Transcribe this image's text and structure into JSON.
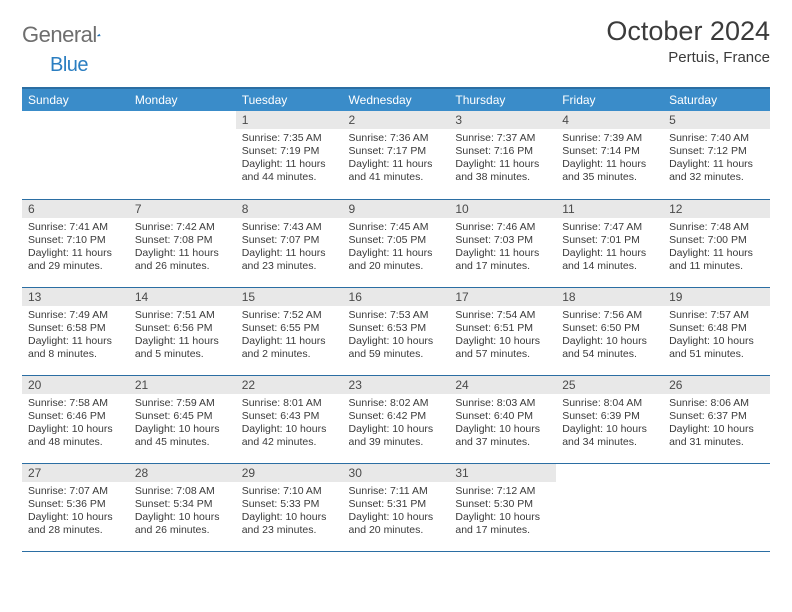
{
  "logo": {
    "word1": "General",
    "word2": "Blue"
  },
  "header": {
    "title": "October 2024",
    "location": "Pertuis, France"
  },
  "colors": {
    "brand_blue": "#2b7ec1",
    "header_bg": "#3a8cc9",
    "header_border": "#2b6ea3",
    "daynum_bg": "#e8e8e8",
    "text": "#3a3a3a",
    "logo_gray": "#6e6e6e"
  },
  "dayNames": [
    "Sunday",
    "Monday",
    "Tuesday",
    "Wednesday",
    "Thursday",
    "Friday",
    "Saturday"
  ],
  "weeks": [
    [
      null,
      null,
      {
        "n": "1",
        "sr": "7:35 AM",
        "ss": "7:19 PM",
        "dl": "11 hours and 44 minutes."
      },
      {
        "n": "2",
        "sr": "7:36 AM",
        "ss": "7:17 PM",
        "dl": "11 hours and 41 minutes."
      },
      {
        "n": "3",
        "sr": "7:37 AM",
        "ss": "7:16 PM",
        "dl": "11 hours and 38 minutes."
      },
      {
        "n": "4",
        "sr": "7:39 AM",
        "ss": "7:14 PM",
        "dl": "11 hours and 35 minutes."
      },
      {
        "n": "5",
        "sr": "7:40 AM",
        "ss": "7:12 PM",
        "dl": "11 hours and 32 minutes."
      }
    ],
    [
      {
        "n": "6",
        "sr": "7:41 AM",
        "ss": "7:10 PM",
        "dl": "11 hours and 29 minutes."
      },
      {
        "n": "7",
        "sr": "7:42 AM",
        "ss": "7:08 PM",
        "dl": "11 hours and 26 minutes."
      },
      {
        "n": "8",
        "sr": "7:43 AM",
        "ss": "7:07 PM",
        "dl": "11 hours and 23 minutes."
      },
      {
        "n": "9",
        "sr": "7:45 AM",
        "ss": "7:05 PM",
        "dl": "11 hours and 20 minutes."
      },
      {
        "n": "10",
        "sr": "7:46 AM",
        "ss": "7:03 PM",
        "dl": "11 hours and 17 minutes."
      },
      {
        "n": "11",
        "sr": "7:47 AM",
        "ss": "7:01 PM",
        "dl": "11 hours and 14 minutes."
      },
      {
        "n": "12",
        "sr": "7:48 AM",
        "ss": "7:00 PM",
        "dl": "11 hours and 11 minutes."
      }
    ],
    [
      {
        "n": "13",
        "sr": "7:49 AM",
        "ss": "6:58 PM",
        "dl": "11 hours and 8 minutes."
      },
      {
        "n": "14",
        "sr": "7:51 AM",
        "ss": "6:56 PM",
        "dl": "11 hours and 5 minutes."
      },
      {
        "n": "15",
        "sr": "7:52 AM",
        "ss": "6:55 PM",
        "dl": "11 hours and 2 minutes."
      },
      {
        "n": "16",
        "sr": "7:53 AM",
        "ss": "6:53 PM",
        "dl": "10 hours and 59 minutes."
      },
      {
        "n": "17",
        "sr": "7:54 AM",
        "ss": "6:51 PM",
        "dl": "10 hours and 57 minutes."
      },
      {
        "n": "18",
        "sr": "7:56 AM",
        "ss": "6:50 PM",
        "dl": "10 hours and 54 minutes."
      },
      {
        "n": "19",
        "sr": "7:57 AM",
        "ss": "6:48 PM",
        "dl": "10 hours and 51 minutes."
      }
    ],
    [
      {
        "n": "20",
        "sr": "7:58 AM",
        "ss": "6:46 PM",
        "dl": "10 hours and 48 minutes."
      },
      {
        "n": "21",
        "sr": "7:59 AM",
        "ss": "6:45 PM",
        "dl": "10 hours and 45 minutes."
      },
      {
        "n": "22",
        "sr": "8:01 AM",
        "ss": "6:43 PM",
        "dl": "10 hours and 42 minutes."
      },
      {
        "n": "23",
        "sr": "8:02 AM",
        "ss": "6:42 PM",
        "dl": "10 hours and 39 minutes."
      },
      {
        "n": "24",
        "sr": "8:03 AM",
        "ss": "6:40 PM",
        "dl": "10 hours and 37 minutes."
      },
      {
        "n": "25",
        "sr": "8:04 AM",
        "ss": "6:39 PM",
        "dl": "10 hours and 34 minutes."
      },
      {
        "n": "26",
        "sr": "8:06 AM",
        "ss": "6:37 PM",
        "dl": "10 hours and 31 minutes."
      }
    ],
    [
      {
        "n": "27",
        "sr": "7:07 AM",
        "ss": "5:36 PM",
        "dl": "10 hours and 28 minutes."
      },
      {
        "n": "28",
        "sr": "7:08 AM",
        "ss": "5:34 PM",
        "dl": "10 hours and 26 minutes."
      },
      {
        "n": "29",
        "sr": "7:10 AM",
        "ss": "5:33 PM",
        "dl": "10 hours and 23 minutes."
      },
      {
        "n": "30",
        "sr": "7:11 AM",
        "ss": "5:31 PM",
        "dl": "10 hours and 20 minutes."
      },
      {
        "n": "31",
        "sr": "7:12 AM",
        "ss": "5:30 PM",
        "dl": "10 hours and 17 minutes."
      },
      null,
      null
    ]
  ],
  "labels": {
    "sunrise": "Sunrise:",
    "sunset": "Sunset:",
    "daylight": "Daylight:"
  }
}
